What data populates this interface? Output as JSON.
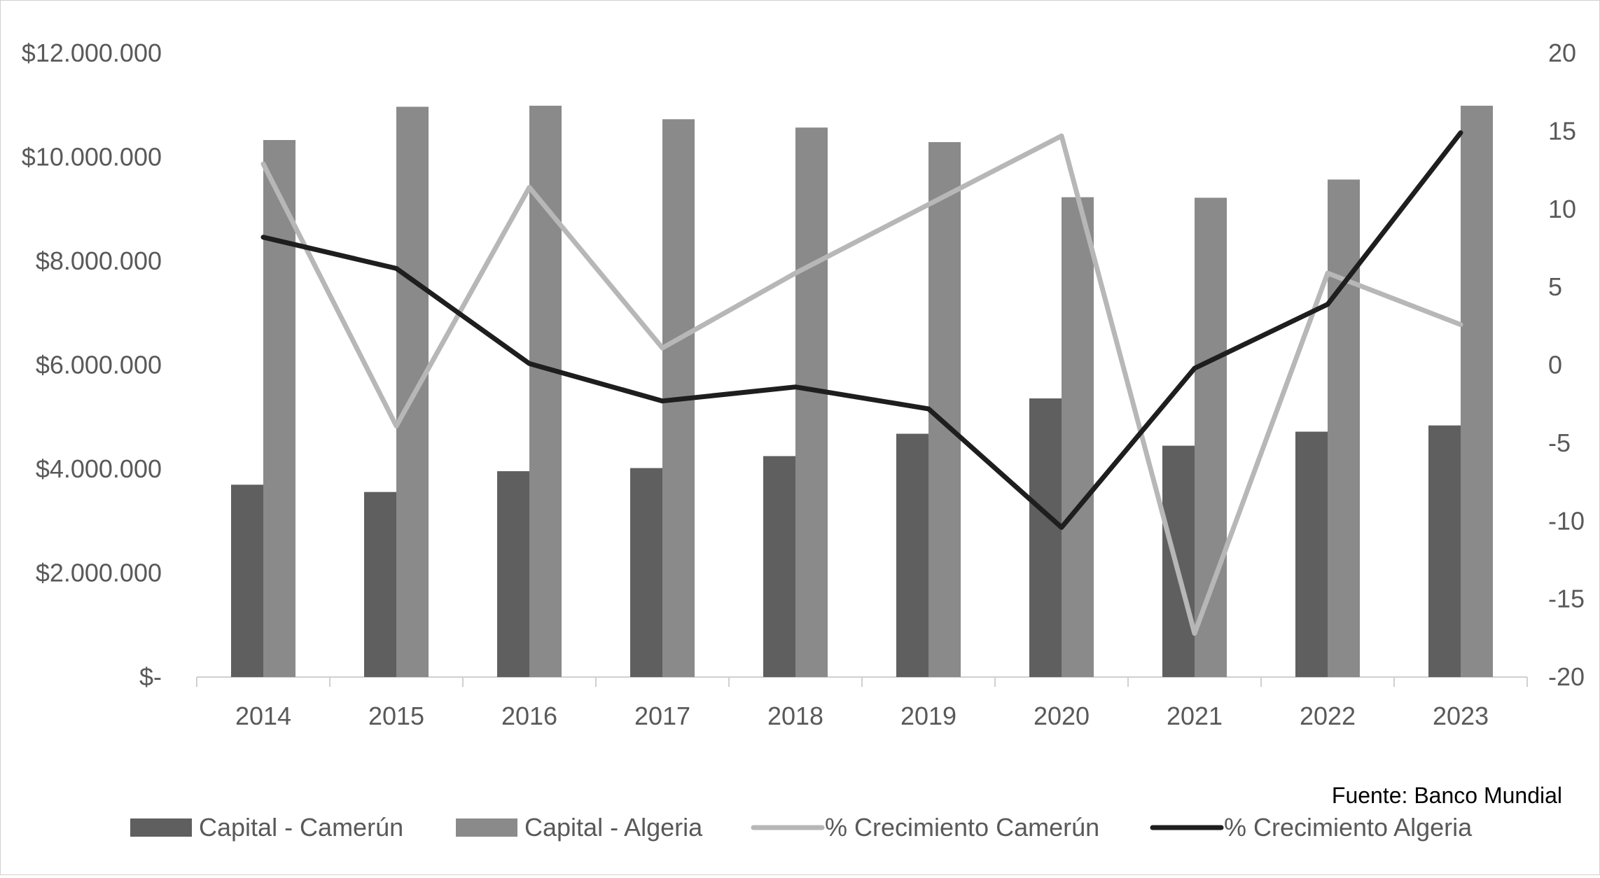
{
  "chart_data": {
    "type": "bar",
    "categories": [
      "2014",
      "2015",
      "2016",
      "2017",
      "2018",
      "2019",
      "2020",
      "2021",
      "2022",
      "2023"
    ],
    "series": [
      {
        "name": "Capital - Camerún",
        "kind": "bar",
        "axis": "left",
        "color": "#5f5f5f",
        "values": [
          3700000,
          3560000,
          3960000,
          4020000,
          4250000,
          4680000,
          5360000,
          4450000,
          4720000,
          4840000
        ]
      },
      {
        "name": "Capital - Algeria",
        "kind": "bar",
        "axis": "left",
        "color": "#8a8a8a",
        "values": [
          10330000,
          10970000,
          10990000,
          10730000,
          10570000,
          10290000,
          9230000,
          9220000,
          9570000,
          10990000
        ]
      },
      {
        "name": "% Crecimiento Camerún",
        "kind": "line",
        "axis": "right",
        "color": "#b7b7b7",
        "values": [
          12.9,
          -3.9,
          11.4,
          1.1,
          5.9,
          10.3,
          14.7,
          -17.2,
          5.9,
          2.6
        ]
      },
      {
        "name": "% Crecimiento Algeria",
        "kind": "line",
        "axis": "right",
        "color": "#1e1e1e",
        "values": [
          8.2,
          6.2,
          0.1,
          -2.3,
          -1.4,
          -2.8,
          -10.4,
          -0.2,
          3.9,
          14.9
        ]
      }
    ],
    "y_left": {
      "min": 0,
      "max": 12000000,
      "ticks": [
        0,
        2000000,
        4000000,
        6000000,
        8000000,
        10000000,
        12000000
      ],
      "tick_labels": [
        "$-",
        "$2.000.000",
        "$4.000.000",
        "$6.000.000",
        "$8.000.000",
        "$10.000.000",
        "$12.000.000"
      ]
    },
    "y_right": {
      "min": -20,
      "max": 20,
      "ticks": [
        -20,
        -15,
        -10,
        -5,
        0,
        5,
        10,
        15,
        20
      ],
      "tick_labels": [
        "-20",
        "-15",
        "-10",
        "-5",
        "0",
        "5",
        "10",
        "15",
        "20"
      ]
    },
    "grid": false,
    "legend_position": "bottom",
    "source_note": "Fuente: Banco Mundial"
  }
}
